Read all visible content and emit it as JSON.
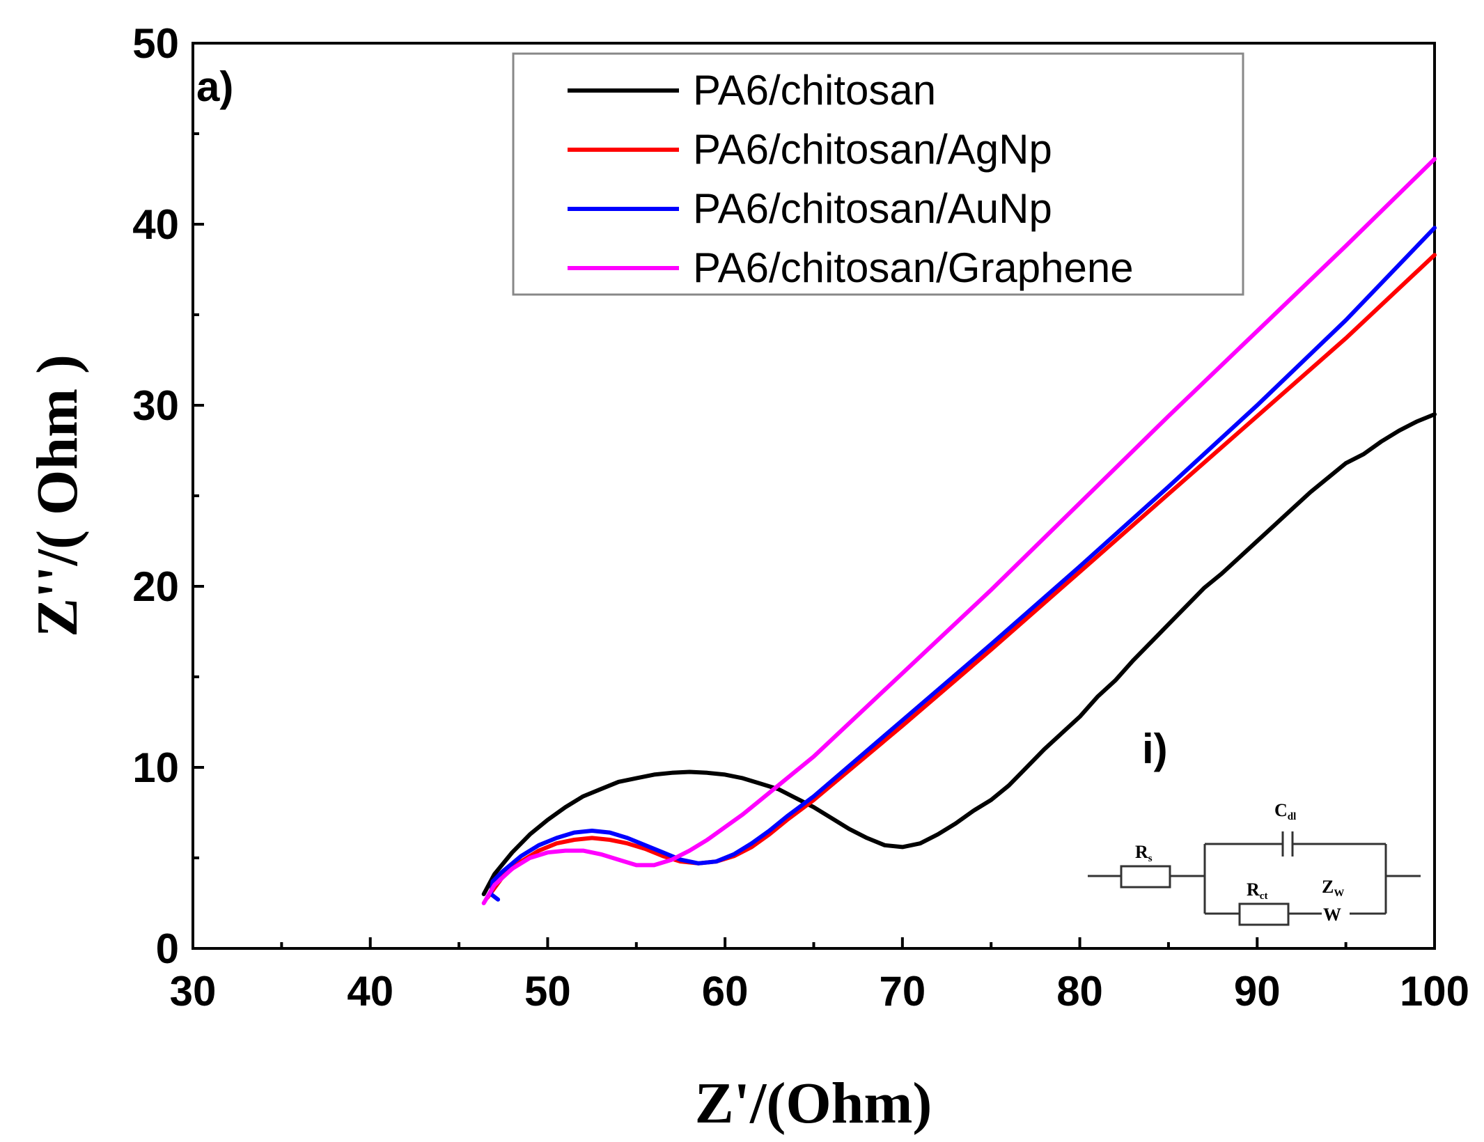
{
  "chart_data": {
    "type": "line",
    "panel_label": "a)",
    "inset_label": "i)",
    "xlabel": "Z'/(Ohm)",
    "ylabel": "Z''/( Ohm )",
    "xlim": [
      30,
      100
    ],
    "ylim": [
      0,
      50
    ],
    "x_major_ticks": [
      30,
      40,
      50,
      60,
      70,
      80,
      90,
      100
    ],
    "x_tick_labels": [
      "30",
      "40",
      "50",
      "60",
      "70",
      "80",
      "90",
      "100"
    ],
    "y_major_ticks": [
      0,
      10,
      20,
      30,
      40,
      50
    ],
    "y_tick_labels": [
      "0",
      "10",
      "20",
      "30",
      "40",
      "50"
    ],
    "legend_position": "top-center",
    "series": [
      {
        "name": "PA6/chitosan",
        "color": "#000000",
        "points": [
          [
            46.4,
            3.0
          ],
          [
            47,
            4.1
          ],
          [
            48,
            5.3
          ],
          [
            49,
            6.3
          ],
          [
            50,
            7.1
          ],
          [
            51,
            7.8
          ],
          [
            52,
            8.4
          ],
          [
            53,
            8.8
          ],
          [
            54,
            9.2
          ],
          [
            55,
            9.4
          ],
          [
            56,
            9.6
          ],
          [
            57,
            9.7
          ],
          [
            58,
            9.75
          ],
          [
            59,
            9.7
          ],
          [
            60,
            9.6
          ],
          [
            61,
            9.4
          ],
          [
            62,
            9.1
          ],
          [
            63,
            8.8
          ],
          [
            64,
            8.3
          ],
          [
            65,
            7.8
          ],
          [
            66,
            7.2
          ],
          [
            67,
            6.6
          ],
          [
            68,
            6.1
          ],
          [
            69,
            5.7
          ],
          [
            70,
            5.6
          ],
          [
            71,
            5.8
          ],
          [
            72,
            6.3
          ],
          [
            73,
            6.9
          ],
          [
            74,
            7.6
          ],
          [
            75,
            8.2
          ],
          [
            76,
            9.0
          ],
          [
            77,
            10.0
          ],
          [
            78,
            11.0
          ],
          [
            79,
            11.9
          ],
          [
            80,
            12.8
          ],
          [
            81,
            13.9
          ],
          [
            82,
            14.8
          ],
          [
            83,
            15.9
          ],
          [
            84,
            16.9
          ],
          [
            85,
            17.9
          ],
          [
            86,
            18.9
          ],
          [
            87,
            19.9
          ],
          [
            88,
            20.7
          ],
          [
            89,
            21.6
          ],
          [
            90,
            22.5
          ],
          [
            91,
            23.4
          ],
          [
            92,
            24.3
          ],
          [
            93,
            25.2
          ],
          [
            94,
            26.0
          ],
          [
            95,
            26.8
          ],
          [
            96,
            27.3
          ],
          [
            97,
            28.0
          ],
          [
            98,
            28.6
          ],
          [
            99,
            29.1
          ],
          [
            100,
            29.5
          ]
        ]
      },
      {
        "name": "PA6/chitosan/AgNp",
        "color": "#ff0000",
        "points": [
          [
            46.6,
            2.8
          ],
          [
            47.5,
            4.0
          ],
          [
            48.5,
            4.8
          ],
          [
            49.5,
            5.4
          ],
          [
            50.5,
            5.8
          ],
          [
            51.5,
            6.0
          ],
          [
            52.5,
            6.1
          ],
          [
            53.5,
            6.0
          ],
          [
            54.5,
            5.8
          ],
          [
            55.5,
            5.5
          ],
          [
            56.5,
            5.1
          ],
          [
            57.5,
            4.8
          ],
          [
            58.5,
            4.7
          ],
          [
            59.5,
            4.8
          ],
          [
            60.5,
            5.1
          ],
          [
            61.5,
            5.6
          ],
          [
            62.5,
            6.3
          ],
          [
            63.5,
            7.1
          ],
          [
            65,
            8.2
          ],
          [
            70,
            12.3
          ],
          [
            75,
            16.5
          ],
          [
            80,
            20.8
          ],
          [
            85,
            25.1
          ],
          [
            90,
            29.4
          ],
          [
            95,
            33.7
          ],
          [
            100,
            38.3
          ]
        ]
      },
      {
        "name": "PA6/chitosan/AuNp",
        "color": "#0000ff",
        "points": [
          [
            47.2,
            2.7
          ],
          [
            46.8,
            3.0
          ],
          [
            46.9,
            3.7
          ],
          [
            47.4,
            4.2
          ],
          [
            48.5,
            5.1
          ],
          [
            49.5,
            5.7
          ],
          [
            50.5,
            6.1
          ],
          [
            51.5,
            6.4
          ],
          [
            52.5,
            6.5
          ],
          [
            53.5,
            6.4
          ],
          [
            54.5,
            6.1
          ],
          [
            55.5,
            5.7
          ],
          [
            56.5,
            5.3
          ],
          [
            57.5,
            4.9
          ],
          [
            58.5,
            4.7
          ],
          [
            59.5,
            4.8
          ],
          [
            60.5,
            5.2
          ],
          [
            61.5,
            5.8
          ],
          [
            62.5,
            6.5
          ],
          [
            63.5,
            7.3
          ],
          [
            65,
            8.4
          ],
          [
            70,
            12.6
          ],
          [
            75,
            16.8
          ],
          [
            80,
            21.1
          ],
          [
            85,
            25.5
          ],
          [
            90,
            30.0
          ],
          [
            95,
            34.7
          ],
          [
            100,
            39.8
          ]
        ]
      },
      {
        "name": "PA6/chitosan/Graphene",
        "color": "#ff00ff",
        "points": [
          [
            46.4,
            2.5
          ],
          [
            47.0,
            3.5
          ],
          [
            48.0,
            4.4
          ],
          [
            49.0,
            5.0
          ],
          [
            50.0,
            5.3
          ],
          [
            51.0,
            5.4
          ],
          [
            52.0,
            5.4
          ],
          [
            53.0,
            5.2
          ],
          [
            54.0,
            4.9
          ],
          [
            55.0,
            4.6
          ],
          [
            56.0,
            4.6
          ],
          [
            57.0,
            4.9
          ],
          [
            58.0,
            5.4
          ],
          [
            59.0,
            6.0
          ],
          [
            60.0,
            6.7
          ],
          [
            61.0,
            7.4
          ],
          [
            62.0,
            8.2
          ],
          [
            63.0,
            9.0
          ],
          [
            65,
            10.6
          ],
          [
            70,
            15.2
          ],
          [
            75,
            19.8
          ],
          [
            80,
            24.6
          ],
          [
            85,
            29.4
          ],
          [
            90,
            34.1
          ],
          [
            95,
            38.8
          ],
          [
            100,
            43.6
          ]
        ]
      }
    ],
    "circuit": {
      "labels": [
        "R",
        "C",
        "R",
        "Z",
        "W"
      ],
      "subscripts": [
        "s",
        "dl",
        "ct",
        "W"
      ]
    }
  }
}
